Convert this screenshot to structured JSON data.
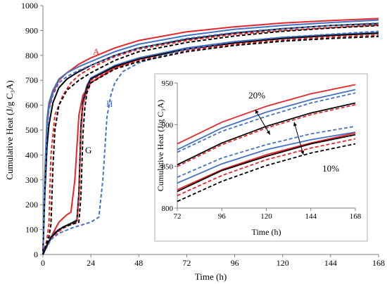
{
  "chart_data": [
    {
      "type": "line",
      "xlabel": "Time (h)",
      "ylabel": "Cumulative Heat (J/g C₃A)",
      "xlim": [
        0,
        168
      ],
      "ylim": [
        0,
        1000
      ],
      "xticks": [
        0,
        24,
        48,
        72,
        96,
        120,
        144,
        168
      ],
      "yticks": [
        0,
        100,
        200,
        300,
        400,
        500,
        600,
        700,
        800,
        900,
        1000
      ],
      "grid": false,
      "legend": "none",
      "annotations": [
        {
          "text": "A",
          "color": "#e8252a"
        },
        {
          "text": "G",
          "color": "#000000"
        },
        {
          "text": "H",
          "color": "#4472c4"
        }
      ],
      "series": [
        {
          "color": "#e8252a",
          "dash": false,
          "x": [
            0,
            1,
            2,
            3,
            5,
            8,
            12,
            18,
            24,
            36,
            48,
            72,
            96,
            120,
            144,
            168
          ],
          "y": [
            0,
            320,
            520,
            590,
            650,
            700,
            730,
            765,
            790,
            830,
            860,
            895,
            915,
            930,
            940,
            948
          ]
        },
        {
          "color": "#e8252a",
          "dash": false,
          "x": [
            0,
            2,
            4,
            6,
            8,
            12,
            14,
            16,
            18,
            20,
            24,
            36,
            48,
            72,
            96,
            120,
            144,
            168
          ],
          "y": [
            0,
            40,
            70,
            100,
            130,
            160,
            170,
            300,
            560,
            640,
            690,
            750,
            785,
            830,
            855,
            870,
            880,
            890
          ]
        },
        {
          "color": "#4472c4",
          "dash": false,
          "x": [
            0,
            1,
            2,
            3,
            5,
            8,
            12,
            18,
            24,
            36,
            48,
            72,
            96,
            120,
            144,
            168
          ],
          "y": [
            0,
            330,
            540,
            610,
            660,
            705,
            730,
            755,
            775,
            815,
            845,
            880,
            905,
            920,
            932,
            942
          ]
        },
        {
          "color": "#4472c4",
          "dash": false,
          "x": [
            0,
            2,
            4,
            6,
            10,
            14,
            17,
            18,
            19,
            20,
            22,
            24,
            36,
            48,
            72,
            96,
            120,
            144,
            168
          ],
          "y": [
            0,
            40,
            70,
            90,
            110,
            125,
            140,
            250,
            520,
            620,
            680,
            710,
            760,
            790,
            830,
            855,
            872,
            883,
            892
          ]
        },
        {
          "color": "#000000",
          "dash": false,
          "x": [
            0,
            1,
            2,
            3,
            5,
            8,
            12,
            18,
            24,
            36,
            48,
            72,
            96,
            120,
            144,
            168
          ],
          "y": [
            0,
            250,
            430,
            520,
            610,
            670,
            705,
            735,
            760,
            800,
            830,
            865,
            890,
            907,
            920,
            928
          ]
        },
        {
          "color": "#000000",
          "dash": false,
          "x": [
            0,
            2,
            4,
            6,
            10,
            14,
            17,
            18,
            19,
            20,
            22,
            24,
            36,
            48,
            72,
            96,
            120,
            144,
            168
          ],
          "y": [
            0,
            35,
            65,
            85,
            110,
            125,
            135,
            240,
            500,
            610,
            670,
            705,
            755,
            785,
            825,
            850,
            868,
            880,
            889
          ]
        },
        {
          "color": "#e8252a",
          "dash": true,
          "x": [
            0,
            2,
            3,
            4,
            6,
            10,
            14,
            18,
            24,
            36,
            48,
            72,
            96,
            120,
            144,
            168
          ],
          "y": [
            0,
            60,
            120,
            400,
            560,
            640,
            690,
            720,
            750,
            795,
            825,
            860,
            885,
            900,
            912,
            922
          ]
        },
        {
          "color": "#e8252a",
          "dash": true,
          "x": [
            0,
            2,
            4,
            6,
            10,
            14,
            17,
            18,
            19,
            20,
            22,
            24,
            36,
            48,
            72,
            96,
            120,
            144,
            168
          ],
          "y": [
            0,
            35,
            60,
            80,
            105,
            120,
            130,
            230,
            480,
            600,
            660,
            700,
            750,
            780,
            820,
            845,
            862,
            874,
            882
          ]
        },
        {
          "color": "#4472c4",
          "dash": true,
          "x": [
            0,
            1,
            2,
            3,
            5,
            8,
            12,
            18,
            24,
            36,
            48,
            72,
            96,
            120,
            144,
            168
          ],
          "y": [
            0,
            300,
            500,
            580,
            640,
            690,
            715,
            740,
            760,
            800,
            830,
            868,
            892,
            908,
            920,
            930
          ]
        },
        {
          "color": "#4472c4",
          "dash": true,
          "x": [
            0,
            4,
            8,
            14,
            20,
            24,
            28,
            30,
            32,
            34,
            36,
            40,
            48,
            60,
            72,
            96,
            120,
            144,
            168
          ],
          "y": [
            0,
            60,
            85,
            105,
            120,
            130,
            150,
            300,
            550,
            640,
            690,
            735,
            770,
            800,
            825,
            855,
            873,
            885,
            897
          ]
        },
        {
          "color": "#000000",
          "dash": true,
          "x": [
            0,
            3,
            4,
            5,
            6,
            8,
            12,
            18,
            24,
            36,
            48,
            72,
            96,
            120,
            144,
            168
          ],
          "y": [
            0,
            70,
            120,
            350,
            500,
            600,
            660,
            700,
            730,
            780,
            815,
            852,
            878,
            897,
            910,
            920
          ]
        },
        {
          "color": "#000000",
          "dash": true,
          "x": [
            0,
            2,
            4,
            8,
            12,
            16,
            18,
            19,
            20,
            21,
            22,
            24,
            36,
            48,
            72,
            96,
            120,
            144,
            168
          ],
          "y": [
            0,
            40,
            70,
            100,
            115,
            125,
            130,
            230,
            480,
            590,
            650,
            690,
            745,
            775,
            815,
            840,
            857,
            868,
            876
          ]
        }
      ]
    },
    {
      "type": "line",
      "xlabel": "Time (h)",
      "ylabel": "Cumulative Heat (J/g C₃A)",
      "xlim": [
        72,
        168
      ],
      "ylim": [
        800,
        950
      ],
      "xticks": [
        72,
        96,
        120,
        144,
        168
      ],
      "yticks": [
        800,
        850,
        900,
        950
      ],
      "grid": false,
      "legend": "none",
      "annotations": [
        {
          "text": "20%"
        },
        {
          "text": "10%"
        }
      ],
      "series": [
        {
          "color": "#e8252a",
          "dash": false,
          "x": [
            72,
            96,
            120,
            144,
            168
          ],
          "y": [
            877,
            903,
            922,
            937,
            948
          ]
        },
        {
          "color": "#4472c4",
          "dash": false,
          "x": [
            72,
            96,
            120,
            144,
            168
          ],
          "y": [
            870,
            896,
            915,
            930,
            942
          ]
        },
        {
          "color": "#4472c4",
          "dash": true,
          "x": [
            72,
            96,
            120,
            144,
            168
          ],
          "y": [
            867,
            892,
            910,
            926,
            938
          ]
        },
        {
          "color": "#000000",
          "dash": false,
          "x": [
            72,
            96,
            120,
            144,
            168
          ],
          "y": [
            852,
            878,
            898,
            914,
            926
          ]
        },
        {
          "color": "#e8252a",
          "dash": true,
          "x": [
            72,
            96,
            120,
            144,
            168
          ],
          "y": [
            850,
            876,
            896,
            912,
            924
          ]
        },
        {
          "color": "#4472c4",
          "dash": true,
          "x": [
            72,
            96,
            120,
            144,
            168
          ],
          "y": [
            837,
            860,
            876,
            889,
            898
          ]
        },
        {
          "color": "#4472c4",
          "dash": false,
          "x": [
            72,
            96,
            120,
            144,
            168
          ],
          "y": [
            830,
            853,
            870,
            882,
            891
          ]
        },
        {
          "color": "#e8252a",
          "dash": false,
          "x": [
            72,
            96,
            120,
            144,
            168
          ],
          "y": [
            822,
            846,
            864,
            878,
            890
          ]
        },
        {
          "color": "#000000",
          "dash": false,
          "x": [
            72,
            96,
            120,
            144,
            168
          ],
          "y": [
            820,
            845,
            862,
            877,
            888
          ]
        },
        {
          "color": "#e8252a",
          "dash": true,
          "x": [
            72,
            96,
            120,
            144,
            168
          ],
          "y": [
            815,
            839,
            858,
            872,
            883
          ]
        },
        {
          "color": "#000000",
          "dash": true,
          "x": [
            72,
            96,
            120,
            144,
            168
          ],
          "y": [
            808,
            832,
            851,
            866,
            877
          ]
        }
      ]
    }
  ]
}
